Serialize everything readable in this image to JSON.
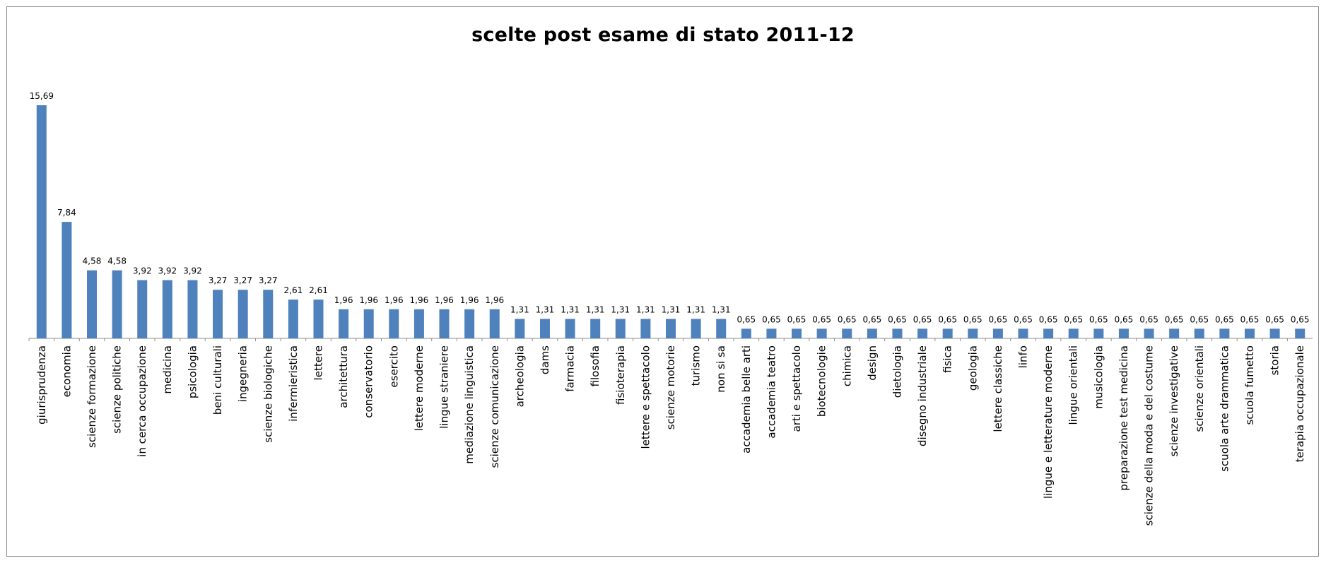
{
  "chart_data": {
    "type": "bar",
    "title": "scelte post esame di stato 2011-12",
    "xlabel": "",
    "ylabel": "",
    "grid": false,
    "legend": "none",
    "bar_color": "#4f81bd",
    "categories": [
      "giurisprudenza",
      "economia",
      "scienze formazione",
      "scienze politiche",
      "in cerca occupazione",
      "medicina",
      "psicologia",
      "beni culturali",
      "ingegneria",
      "scienze biologiche",
      "infermieristica",
      "lettere",
      "architettura",
      "conservatorio",
      "esercito",
      "lettere moderne",
      "lingue straniere",
      "mediazione linguistica",
      "scienze comunicazione",
      "archeologia",
      "dams",
      "farmacia",
      "filosofia",
      "fisioterapia",
      "lettere e spettacolo",
      "scienze motorie",
      "turismo",
      "non si sa",
      "accademia belle arti",
      "accademia teatro",
      "arti e spettacolo",
      "biotecnologie",
      "chimica",
      "design",
      "dietologia",
      "disegno industriale",
      "fisica",
      "geologia",
      "lettere classiche",
      "linfo",
      "lingue e letterature moderne",
      "lingue orientali",
      "musicologia",
      "preparazione test medicina",
      "scienze della moda e del costume",
      "scienze investigative",
      "scienze orientali",
      "scuola arte drammatica",
      "scuola fumetto",
      "storia",
      "terapia occupazionale"
    ],
    "values": [
      15.69,
      7.84,
      4.58,
      4.58,
      3.92,
      3.92,
      3.92,
      3.27,
      3.27,
      3.27,
      2.61,
      2.61,
      1.96,
      1.96,
      1.96,
      1.96,
      1.96,
      1.96,
      1.96,
      1.31,
      1.31,
      1.31,
      1.31,
      1.31,
      1.31,
      1.31,
      1.31,
      1.31,
      0.65,
      0.65,
      0.65,
      0.65,
      0.65,
      0.65,
      0.65,
      0.65,
      0.65,
      0.65,
      0.65,
      0.65,
      0.65,
      0.65,
      0.65,
      0.65,
      0.65,
      0.65,
      0.65,
      0.65,
      0.65,
      0.65,
      0.65
    ],
    "data_labels": [
      "15,69",
      "7,84",
      "4,58",
      "4,58",
      "3,92",
      "3,92",
      "3,92",
      "3,27",
      "3,27",
      "3,27",
      "2,61",
      "2,61",
      "1,96",
      "1,96",
      "1,96",
      "1,96",
      "1,96",
      "1,96",
      "1,96",
      "1,31",
      "1,31",
      "1,31",
      "1,31",
      "1,31",
      "1,31",
      "1,31",
      "1,31",
      "1,31",
      "0,65",
      "0,65",
      "0,65",
      "0,65",
      "0,65",
      "0,65",
      "0,65",
      "0,65",
      "0,65",
      "0,65",
      "0,65",
      "0,65",
      "0,65",
      "0,65",
      "0,65",
      "0,65",
      "0,65",
      "0,65",
      "0,65",
      "0,65",
      "0,65",
      "0,65",
      "0,65"
    ],
    "ylim": [
      0,
      15.69
    ]
  }
}
